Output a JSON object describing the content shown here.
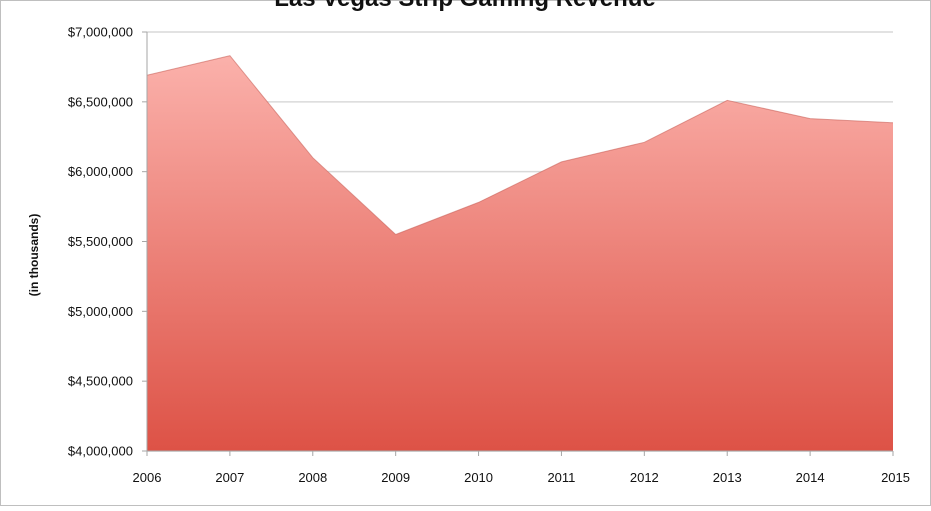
{
  "chart_data": {
    "type": "area",
    "title": "Las Vegas Strip Gaming Revenue",
    "xlabel": "",
    "ylabel": "(in thousands)",
    "x": [
      "2006",
      "2007",
      "2008",
      "2009",
      "2010",
      "2011",
      "2012",
      "2013",
      "2014",
      "2015"
    ],
    "series": [
      {
        "values": [
          6690000,
          6830000,
          6100000,
          5550000,
          5780000,
          6070000,
          6210000,
          6510000,
          6380000,
          6350000
        ]
      }
    ],
    "ylim": [
      4000000,
      7000000
    ],
    "yticks": [
      4000000,
      4500000,
      5000000,
      5500000,
      6000000,
      6500000,
      7000000
    ],
    "ytick_labels": [
      "$4,000,000",
      "$4,500,000",
      "$5,000,000",
      "$5,500,000",
      "$6,000,000",
      "$6,500,000",
      "$7,000,000"
    ],
    "grid": true,
    "legend": "none",
    "colors": {
      "fill_top": "#fbb1ab",
      "fill_bottom": "#dd5246",
      "grid": "#d9d9d9",
      "axis": "#a6a6a6"
    }
  }
}
